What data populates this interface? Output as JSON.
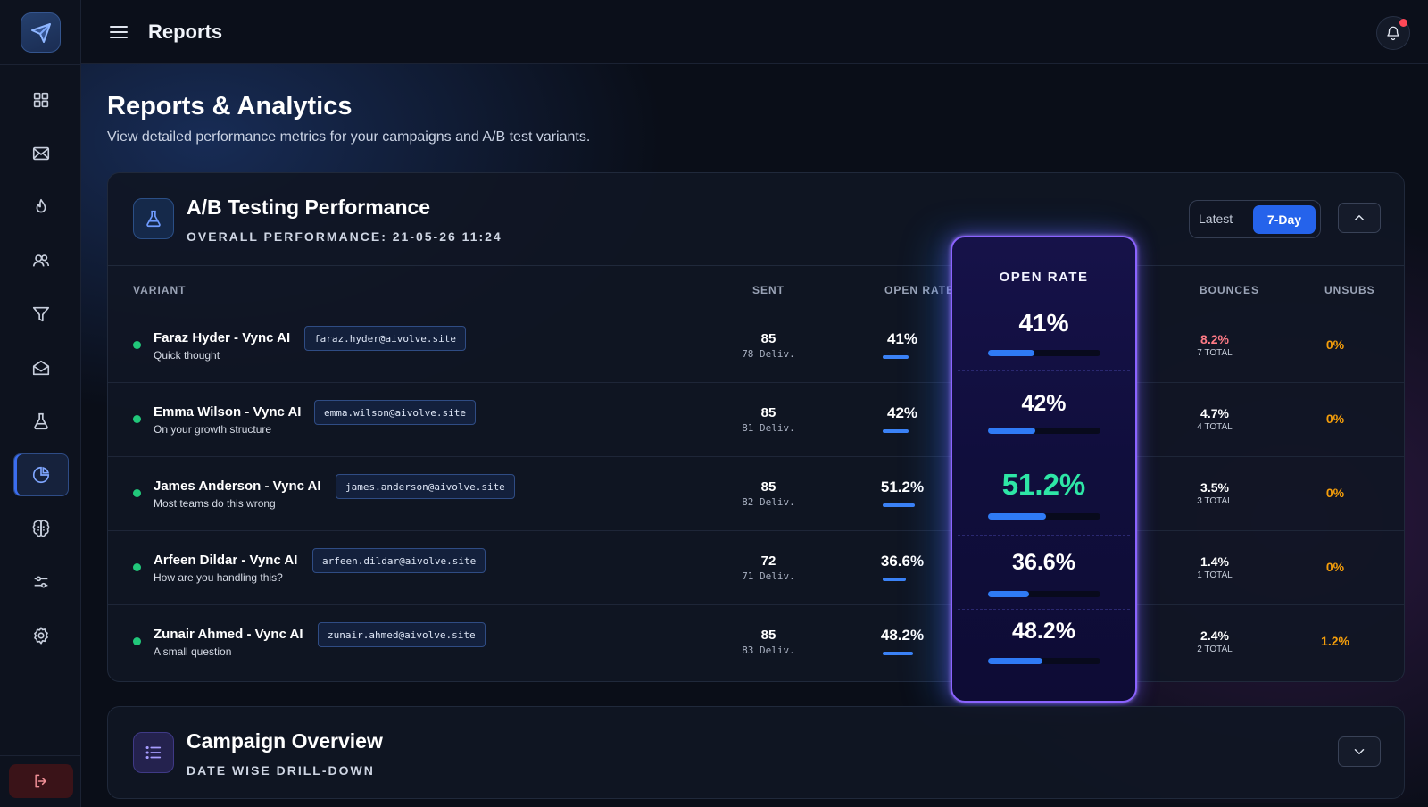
{
  "header": {
    "title": "Reports"
  },
  "sidebar": {
    "items": [
      {
        "icon": "grid-icon"
      },
      {
        "icon": "mail-icon"
      },
      {
        "icon": "flame-icon"
      },
      {
        "icon": "users-icon"
      },
      {
        "icon": "filter-icon"
      },
      {
        "icon": "inbox-icon"
      },
      {
        "icon": "flask-icon"
      },
      {
        "icon": "pie-chart-icon",
        "active": true
      },
      {
        "icon": "brain-icon"
      },
      {
        "icon": "sliders-icon"
      },
      {
        "icon": "gear-icon"
      }
    ]
  },
  "page": {
    "title": "Reports & Analytics",
    "subtitle": "View detailed performance metrics for your campaigns and A/B test variants."
  },
  "ab_card": {
    "title": "A/B Testing Performance",
    "subtitle": "OVERALL PERFORMANCE: 21-05-26 11:24",
    "toggle": {
      "latest": "Latest",
      "seven_day": "7-Day"
    },
    "columns": {
      "variant": "VARIANT",
      "sent": "SENT",
      "open_rate": "OPEN RATE",
      "bounces": "BOUNCES",
      "unsubs": "UNSUBS"
    },
    "highlight_header": "OPEN RATE",
    "rows": [
      {
        "name": "Faraz Hyder - Vync AI",
        "subject": "Quick thought",
        "email": "faraz.hyder@aivolve.site",
        "sent": "85",
        "delivered": "78 Deliv.",
        "open_rate": "41%",
        "open_fraction": 0.41,
        "bounce": "8.2%",
        "bounce_total": "7 TOTAL",
        "unsubs": "0%"
      },
      {
        "name": "Emma Wilson - Vync AI",
        "subject": "On your growth structure",
        "email": "emma.wilson@aivolve.site",
        "sent": "85",
        "delivered": "81 Deliv.",
        "open_rate": "42%",
        "open_fraction": 0.42,
        "bounce": "4.7%",
        "bounce_total": "4 TOTAL",
        "unsubs": "0%"
      },
      {
        "name": "James Anderson - Vync AI",
        "subject": "Most teams do this wrong",
        "email": "james.anderson@aivolve.site",
        "sent": "85",
        "delivered": "82 Deliv.",
        "open_rate": "51.2%",
        "open_fraction": 0.512,
        "bounce": "3.5%",
        "bounce_total": "3 TOTAL",
        "unsubs": "0%",
        "best": true
      },
      {
        "name": "Arfeen Dildar - Vync AI",
        "subject": "How are you handling this?",
        "email": "arfeen.dildar@aivolve.site",
        "sent": "72",
        "delivered": "71 Deliv.",
        "open_rate": "36.6%",
        "open_fraction": 0.366,
        "bounce": "1.4%",
        "bounce_total": "1 TOTAL",
        "unsubs": "0%"
      },
      {
        "name": "Zunair Ahmed - Vync AI",
        "subject": "A small question",
        "email": "zunair.ahmed@aivolve.site",
        "sent": "85",
        "delivered": "83 Deliv.",
        "open_rate": "48.2%",
        "open_fraction": 0.482,
        "bounce": "2.4%",
        "bounce_total": "2 TOTAL",
        "unsubs": "1.2%"
      }
    ]
  },
  "campaign_card": {
    "title": "Campaign Overview",
    "subtitle": "DATE WISE DRILL-DOWN"
  },
  "colors": {
    "accent": "#2563eb",
    "highlight_border": "#8b63ff",
    "best_value": "#2ee6a6",
    "bounce_high": "#ff7b86",
    "unsubs": "#f59e0b",
    "status_active": "#21c77a"
  }
}
